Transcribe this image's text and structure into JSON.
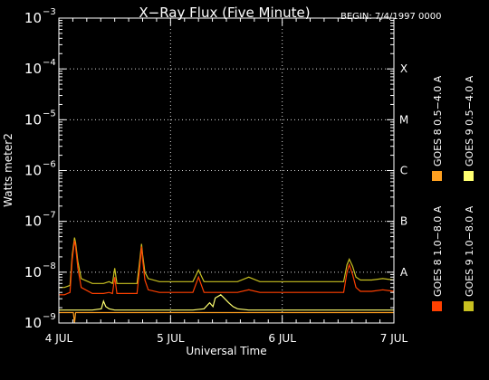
{
  "chart_data": {
    "type": "line",
    "title": "X−Ray Flux (Five Minute)",
    "begin_label": "BEGIN: 7/4/1997 0000",
    "xlabel": "Universal Time",
    "ylabel": "Watts meter2",
    "x_tick_labels": [
      "4 JUL",
      "5 JUL",
      "6 JUL",
      "7 JUL"
    ],
    "xlim": [
      0,
      3
    ],
    "yscale": "log",
    "ylim": [
      1e-09,
      0.001
    ],
    "y_tick_labels": [
      {
        "value": 1e-09,
        "mantissa": "10",
        "exp": "−9"
      },
      {
        "value": 1e-08,
        "mantissa": "10",
        "exp": "−8"
      },
      {
        "value": 1e-07,
        "mantissa": "10",
        "exp": "−7"
      },
      {
        "value": 1e-06,
        "mantissa": "10",
        "exp": "−6"
      },
      {
        "value": 1e-05,
        "mantissa": "10",
        "exp": "−5"
      },
      {
        "value": 0.0001,
        "mantissa": "10",
        "exp": "−4"
      },
      {
        "value": 0.001,
        "mantissa": "10",
        "exp": "−3"
      }
    ],
    "flare_classes": [
      {
        "label": "A",
        "value": 1e-08
      },
      {
        "label": "B",
        "value": 1e-07
      },
      {
        "label": "C",
        "value": 1e-06
      },
      {
        "label": "M",
        "value": 1e-05
      },
      {
        "label": "X",
        "value": 0.0001
      }
    ],
    "grid": true,
    "legend_position": "right (vertical)",
    "legend": [
      {
        "label": "GOES 8  1.0−8.0 A",
        "color": "#ff4000"
      },
      {
        "label": "GOES 8  0.5−4.0 A",
        "color": "#ffa020"
      },
      {
        "label": "GOES 9  1.0−8.0 A",
        "color": "#c8c020"
      },
      {
        "label": "GOES 9  0.5−4.0 A",
        "color": "#ffff70"
      }
    ],
    "series": [
      {
        "color": "#c8c020",
        "x": [
          0,
          0.05,
          0.1,
          0.12,
          0.14,
          0.15,
          0.17,
          0.2,
          0.3,
          0.4,
          0.45,
          0.48,
          0.5,
          0.52,
          0.55,
          0.6,
          0.7,
          0.72,
          0.74,
          0.75,
          0.77,
          0.8,
          0.9,
          1.0,
          1.1,
          1.2,
          1.25,
          1.3,
          1.35,
          1.4,
          1.5,
          1.6,
          1.7,
          1.8,
          1.9,
          2.0,
          2.1,
          2.2,
          2.3,
          2.4,
          2.5,
          2.55,
          2.58,
          2.6,
          2.63,
          2.66,
          2.7,
          2.8,
          2.9,
          3.0
        ],
        "y": [
          5e-09,
          5e-09,
          5.5e-09,
          2.2e-08,
          4.8e-08,
          3.8e-08,
          1.6e-08,
          7.5e-09,
          6e-09,
          6e-09,
          6.5e-09,
          6e-09,
          1.2e-08,
          6e-09,
          6e-09,
          6e-09,
          6e-09,
          1.4e-08,
          3.6e-08,
          2.2e-08,
          1e-08,
          7.5e-09,
          6.5e-09,
          6.5e-09,
          6.5e-09,
          6.5e-09,
          1.1e-08,
          6.5e-09,
          6.5e-09,
          6.5e-09,
          6.5e-09,
          6.5e-09,
          8e-09,
          6.5e-09,
          6.5e-09,
          6.5e-09,
          6.5e-09,
          6.5e-09,
          6.5e-09,
          6.5e-09,
          6.5e-09,
          6.5e-09,
          1.4e-08,
          1.8e-08,
          1.3e-08,
          8e-09,
          7e-09,
          7e-09,
          7.5e-09,
          7e-09
        ]
      },
      {
        "color": "#ff4000",
        "x": [
          0,
          0.05,
          0.1,
          0.12,
          0.14,
          0.15,
          0.17,
          0.2,
          0.3,
          0.4,
          0.45,
          0.48,
          0.5,
          0.52,
          0.55,
          0.6,
          0.7,
          0.72,
          0.74,
          0.75,
          0.77,
          0.8,
          0.9,
          1.0,
          1.1,
          1.2,
          1.25,
          1.3,
          1.35,
          1.4,
          1.5,
          1.6,
          1.7,
          1.8,
          1.9,
          2.0,
          2.1,
          2.2,
          2.3,
          2.4,
          2.5,
          2.55,
          2.58,
          2.6,
          2.63,
          2.66,
          2.7,
          2.8,
          2.9,
          3.0
        ],
        "y": [
          3.6e-09,
          3.6e-09,
          4e-09,
          1.8e-08,
          4.2e-08,
          3.2e-08,
          1.2e-08,
          5e-09,
          3.8e-09,
          3.8e-09,
          4e-09,
          3.8e-09,
          8e-09,
          3.8e-09,
          3.8e-09,
          3.8e-09,
          3.8e-09,
          1e-08,
          3.2e-08,
          1.8e-08,
          7e-09,
          4.5e-09,
          4e-09,
          4e-09,
          4e-09,
          4e-09,
          8e-09,
          4e-09,
          4e-09,
          4e-09,
          4e-09,
          4e-09,
          4.5e-09,
          4e-09,
          4e-09,
          4e-09,
          4e-09,
          4e-09,
          4e-09,
          4e-09,
          4e-09,
          4e-09,
          1e-08,
          1.4e-08,
          9e-09,
          5e-09,
          4.2e-09,
          4.2e-09,
          4.5e-09,
          4.2e-09
        ]
      },
      {
        "color": "#ffa020",
        "x": [
          0,
          0.1,
          0.13,
          0.14,
          0.15,
          0.2,
          0.35,
          0.4,
          0.42,
          0.45,
          0.5,
          0.6,
          0.7,
          0.8,
          0.9,
          1.0,
          1.1,
          1.2,
          1.3,
          1.35,
          1.4,
          1.45,
          1.5,
          1.6,
          1.8,
          2.0,
          2.2,
          2.4,
          2.6,
          2.8,
          3.0
        ],
        "y": [
          1.6e-09,
          1.6e-09,
          1.6e-09,
          1e-09,
          1.6e-09,
          1.6e-09,
          1.6e-09,
          1.6e-09,
          1.6e-09,
          1.6e-09,
          1.6e-09,
          1.6e-09,
          1.6e-09,
          1.6e-09,
          1.6e-09,
          1.6e-09,
          1.6e-09,
          1.6e-09,
          1.6e-09,
          1.6e-09,
          1.6e-09,
          1.6e-09,
          1.6e-09,
          1.6e-09,
          1.6e-09,
          1.6e-09,
          1.6e-09,
          1.6e-09,
          1.6e-09,
          1.6e-09,
          1.6e-09
        ]
      },
      {
        "color": "#ffff70",
        "x": [
          0,
          0.1,
          0.2,
          0.3,
          0.38,
          0.4,
          0.42,
          0.45,
          0.5,
          0.6,
          0.7,
          0.8,
          0.9,
          1.0,
          1.1,
          1.2,
          1.3,
          1.35,
          1.38,
          1.4,
          1.45,
          1.48,
          1.52,
          1.56,
          1.6,
          1.7,
          1.8,
          1.9,
          2.0,
          2.1,
          2.2,
          2.3,
          2.4,
          2.5,
          2.6,
          2.7,
          2.8,
          2.9,
          3.0
        ],
        "y": [
          1.8e-09,
          1.8e-09,
          1.8e-09,
          1.8e-09,
          1.9e-09,
          2.7e-09,
          2.1e-09,
          1.9e-09,
          1.8e-09,
          1.8e-09,
          1.8e-09,
          1.8e-09,
          1.8e-09,
          1.8e-09,
          1.8e-09,
          1.8e-09,
          1.9e-09,
          2.5e-09,
          2.1e-09,
          3.1e-09,
          3.6e-09,
          3.1e-09,
          2.5e-09,
          2.1e-09,
          1.9e-09,
          1.8e-09,
          1.8e-09,
          1.8e-09,
          1.8e-09,
          1.8e-09,
          1.8e-09,
          1.8e-09,
          1.8e-09,
          1.8e-09,
          1.8e-09,
          1.8e-09,
          1.8e-09,
          1.8e-09,
          1.8e-09
        ]
      }
    ]
  }
}
